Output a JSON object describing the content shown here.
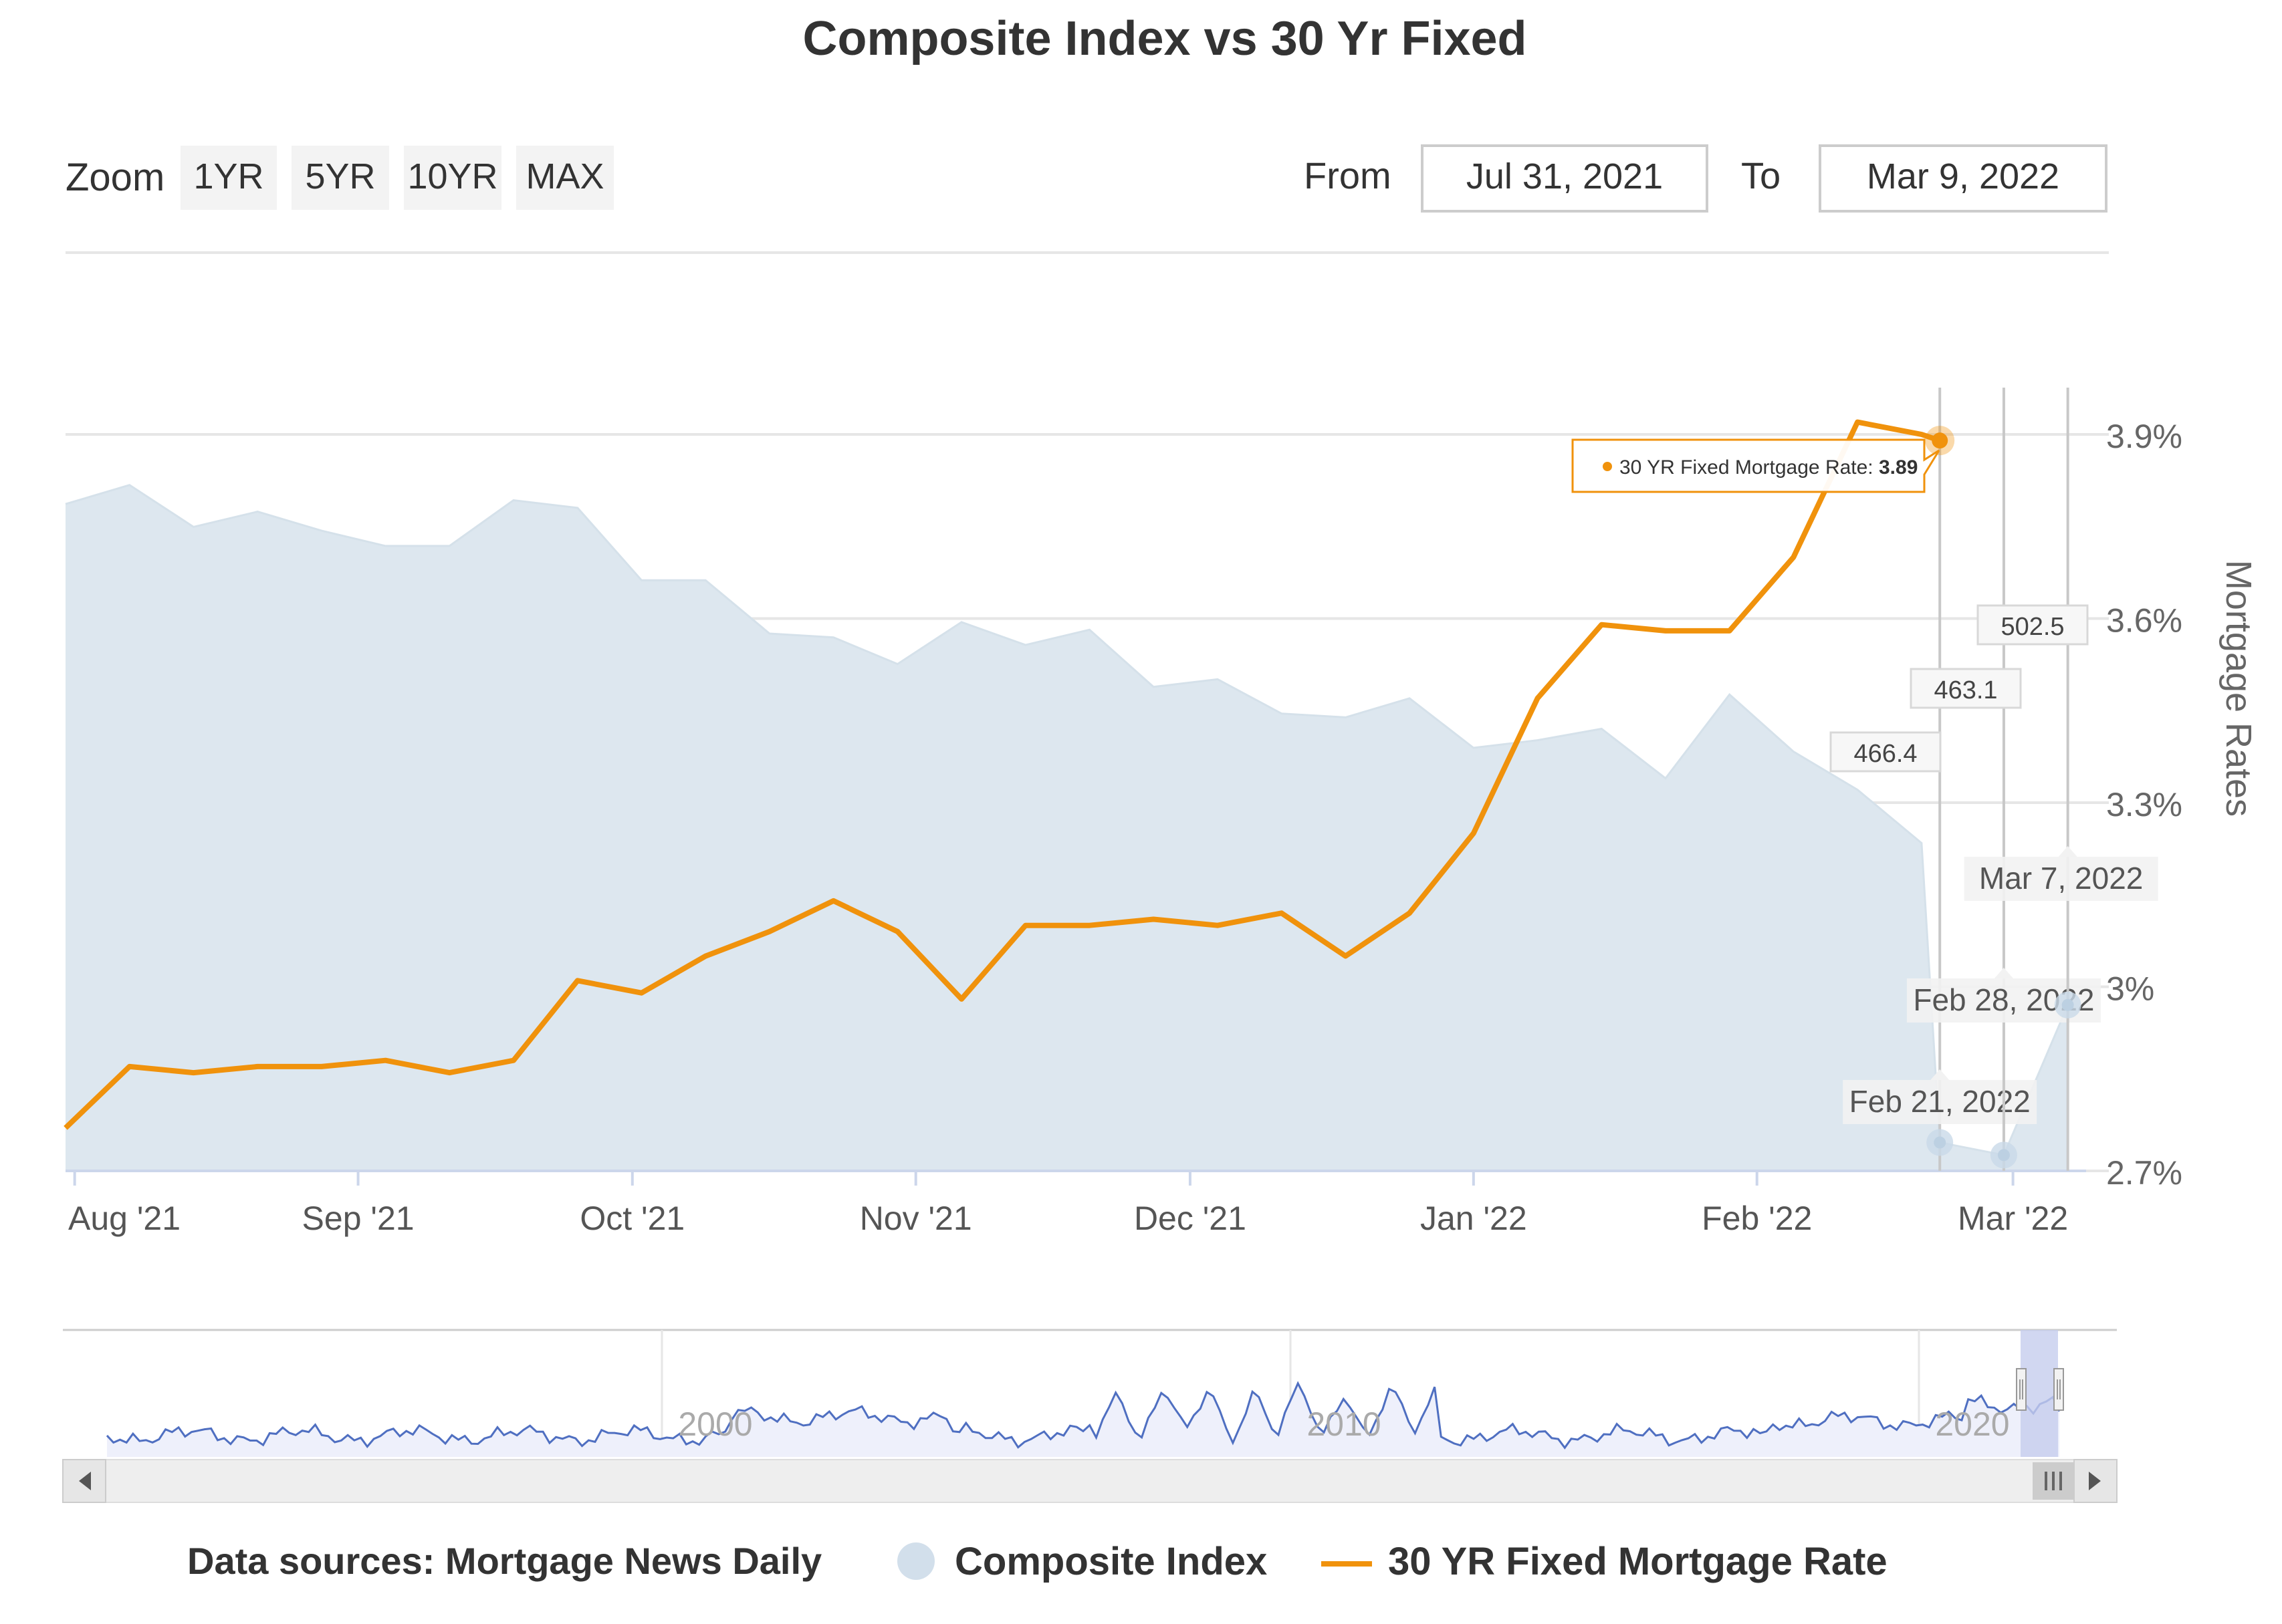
{
  "title": "Composite Index vs 30 Yr Fixed",
  "zoom": {
    "label": "Zoom",
    "buttons": [
      "1YR",
      "5YR",
      "10YR",
      "MAX"
    ]
  },
  "range": {
    "from_label": "From",
    "from_value": "Jul 31, 2021",
    "to_label": "To",
    "to_value": "Mar 9, 2022"
  },
  "colors": {
    "composite_fill": "#dde7ef",
    "composite_marker": "#c9d9e8",
    "mortgage_line": "#f0920c",
    "navigator_line": "#4f6fc1",
    "navigator_fill": "#eef0fb",
    "navigator_mask": "#c6cdee",
    "grid": "#e6e6e6"
  },
  "chart_data": {
    "type": "area",
    "x_tick_labels": [
      "Aug '21",
      "Sep '21",
      "Oct '21",
      "Nov '21",
      "Dec '21",
      "Jan '22",
      "Feb '22",
      "Mar '22"
    ],
    "y_right": {
      "title": "Mortgage Rates",
      "ticks": [
        "3.9%",
        "3.6%",
        "3.3%",
        "3%",
        "2.7%"
      ],
      "range": [
        2.7,
        3.9
      ]
    },
    "series": [
      {
        "name": "Composite Index",
        "type": "area",
        "axis_hidden": true,
        "x": [
          "2021-07-31",
          "2021-08-07",
          "2021-08-14",
          "2021-08-21",
          "2021-08-28",
          "2021-09-04",
          "2021-09-11",
          "2021-09-18",
          "2021-09-25",
          "2021-10-02",
          "2021-10-09",
          "2021-10-16",
          "2021-10-23",
          "2021-10-30",
          "2021-11-06",
          "2021-11-13",
          "2021-11-20",
          "2021-11-27",
          "2021-12-04",
          "2021-12-11",
          "2021-12-18",
          "2021-12-25",
          "2022-01-01",
          "2022-01-08",
          "2022-01-15",
          "2022-01-22",
          "2022-01-29",
          "2022-02-05",
          "2022-02-12",
          "2022-02-19",
          "2022-02-21",
          "2022-02-28",
          "2022-03-07"
        ],
        "values": [
          634,
          639,
          628,
          632,
          627,
          623,
          623,
          635,
          633,
          614,
          614,
          600,
          599,
          592,
          603,
          597,
          601,
          586,
          588,
          579,
          578,
          583,
          570,
          572,
          575,
          562,
          584,
          569,
          559,
          545,
          466.4,
          463.1,
          502.5
        ]
      },
      {
        "name": "30 YR Fixed Mortgage Rate",
        "type": "line",
        "x": [
          "2021-07-31",
          "2021-08-07",
          "2021-08-14",
          "2021-08-21",
          "2021-08-28",
          "2021-09-04",
          "2021-09-11",
          "2021-09-18",
          "2021-09-25",
          "2021-10-02",
          "2021-10-09",
          "2021-10-16",
          "2021-10-23",
          "2021-10-30",
          "2021-11-06",
          "2021-11-13",
          "2021-11-20",
          "2021-11-27",
          "2021-12-04",
          "2021-12-11",
          "2021-12-18",
          "2021-12-25",
          "2022-01-01",
          "2022-01-08",
          "2022-01-15",
          "2022-01-22",
          "2022-01-29",
          "2022-02-05",
          "2022-02-12",
          "2022-02-19",
          "2022-02-21"
        ],
        "values": [
          2.77,
          2.87,
          2.86,
          2.87,
          2.87,
          2.88,
          2.86,
          2.88,
          3.01,
          2.99,
          3.05,
          3.09,
          3.14,
          3.09,
          2.98,
          3.1,
          3.1,
          3.11,
          3.1,
          3.12,
          3.05,
          3.12,
          3.25,
          3.47,
          3.59,
          3.58,
          3.58,
          3.7,
          3.92,
          3.9,
          3.89
        ]
      }
    ],
    "tooltips": {
      "mortgage": {
        "label": "30 YR Fixed Mortgage Rate:",
        "value": "3.89"
      },
      "composite_values": [
        "466.4",
        "463.1",
        "502.5"
      ]
    },
    "crosshair_dates": [
      "Feb 21, 2022",
      "Feb 28, 2022",
      "Mar 7, 2022"
    ],
    "navigator": {
      "year_labels": [
        "2000",
        "2010",
        "2020"
      ]
    },
    "source": "Data sources: Mortgage News Daily",
    "legend": [
      "Composite Index",
      "30 YR Fixed Mortgage Rate"
    ]
  }
}
